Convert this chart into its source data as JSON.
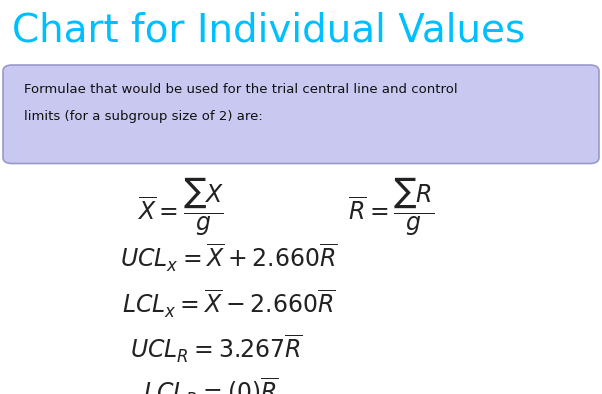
{
  "title": "Chart for Individual Values",
  "title_color": "#00BFFF",
  "title_fontsize": 28,
  "box_text_line1": "Formulae that would be used for the trial central line and control",
  "box_text_line2": "limits (for a subgroup size of 2) are:",
  "box_bg_color": "#C8C8F0",
  "box_border_color": "#9999CC",
  "background_color": "#FFFFFF",
  "formula_color": "#222222",
  "formula_fontsize": 17
}
